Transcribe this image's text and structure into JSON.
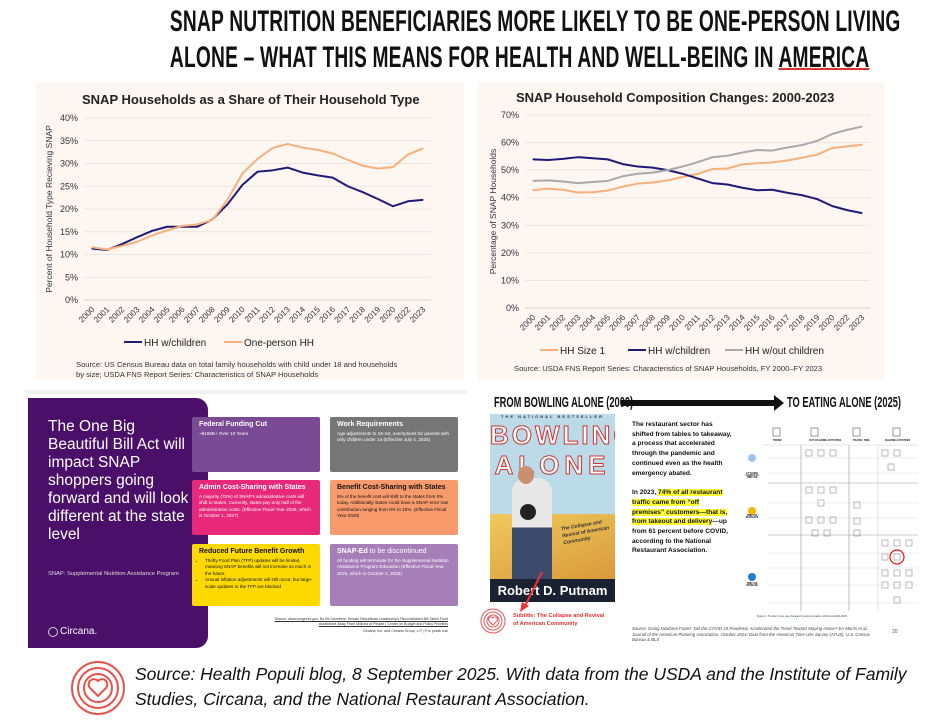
{
  "title": {
    "line1": "SNAP NUTRITION BENEFICIARIES MORE LIKELY TO BE ONE-PERSON LIVING",
    "line2_a": "ALONE – WHAT THIS MEANS FOR HEALTH AND WELL-BEING IN ",
    "line2_b": "AMERICA"
  },
  "chart_data": [
    {
      "type": "line",
      "title": "SNAP Households as a Share of Their Household Type",
      "xlabel": "",
      "ylabel": "Percent of Household Type Recieving SNAP",
      "categories": [
        "2000",
        "2001",
        "2002",
        "2003",
        "2004",
        "2005",
        "2006",
        "2007",
        "2008",
        "2009",
        "2010",
        "2011",
        "2012",
        "2013",
        "2014",
        "2015",
        "2016",
        "2017",
        "2018",
        "2019",
        "2020",
        "2022",
        "2023"
      ],
      "ylim": [
        0,
        40
      ],
      "yticks": [
        "0%",
        "5%",
        "10%",
        "15%",
        "20%",
        "25%",
        "30%",
        "35%",
        "40%"
      ],
      "grid": true,
      "legend": "bottom",
      "series": [
        {
          "name": "HH w/children",
          "color": "#1f1a7a",
          "values": [
            11.3,
            11.0,
            12.3,
            13.8,
            15.2,
            16.1,
            16.1,
            16.1,
            17.7,
            21.0,
            25.3,
            28.2,
            28.5,
            29.1,
            28.0,
            27.4,
            26.9,
            25.0,
            23.7,
            22.2,
            20.6,
            21.7,
            22.0
          ]
        },
        {
          "name": "One-person HH",
          "color": "#f8b07a",
          "values": [
            11.6,
            11.1,
            11.9,
            12.8,
            14.2,
            15.3,
            16.3,
            16.6,
            17.6,
            22.0,
            27.8,
            31.0,
            33.4,
            34.3,
            33.5,
            33.0,
            32.2,
            30.8,
            29.5,
            28.9,
            29.2,
            32.0,
            33.3
          ]
        }
      ],
      "source": "Source: US Census Bureau data on total family households with child under 18 and households by size; USDA FNS Report Series: Characteristics of SNAP Households"
    },
    {
      "type": "line",
      "title": "SNAP Household Composition Changes: 2000-2023",
      "xlabel": "",
      "ylabel": "Percentage of SNAP Households",
      "categories": [
        "2000",
        "2001",
        "2002",
        "2003",
        "2004",
        "2005",
        "2006",
        "2007",
        "2008",
        "2009",
        "2010",
        "2011",
        "2012",
        "2013",
        "2014",
        "2015",
        "2016",
        "2017",
        "2018",
        "2019",
        "2020",
        "2022",
        "2023"
      ],
      "ylim": [
        0,
        70
      ],
      "yticks": [
        "0%",
        "10%",
        "20%",
        "30%",
        "40%",
        "50%",
        "60%",
        "70%"
      ],
      "grid": true,
      "legend": "bottom",
      "series": [
        {
          "name": "HH Size 1",
          "color": "#f8b07a",
          "values": [
            42.7,
            43.3,
            42.9,
            41.9,
            42.0,
            42.6,
            44.0,
            45.1,
            45.5,
            46.3,
            47.5,
            48.6,
            50.4,
            50.6,
            52.1,
            52.5,
            52.8,
            53.5,
            54.5,
            55.6,
            58.0,
            58.6,
            59.2
          ]
        },
        {
          "name": "HH w/children",
          "color": "#1f1a7a",
          "values": [
            53.9,
            53.7,
            54.1,
            54.7,
            54.3,
            53.9,
            52.2,
            51.3,
            50.9,
            50.0,
            48.7,
            47.0,
            45.3,
            44.8,
            43.6,
            42.7,
            42.9,
            41.8,
            40.9,
            39.5,
            37.0,
            35.5,
            34.4
          ]
        },
        {
          "name": "HH w/out children",
          "color": "#a9a9a9",
          "values": [
            46.1,
            46.3,
            45.9,
            45.3,
            45.7,
            46.1,
            47.8,
            48.7,
            49.1,
            50.0,
            51.3,
            52.9,
            54.7,
            55.2,
            56.4,
            57.3,
            57.1,
            58.2,
            59.1,
            60.6,
            63.1,
            64.6,
            65.8
          ]
        }
      ],
      "source": "Source: USDA FNS Report Series: Characteristics of SNAP Households, FY 2000–FY 2023"
    }
  ],
  "slide_left": {
    "headline": "The One Big Beautiful Bill Act will impact SNAP shoppers going forward and will look different at the state level",
    "definition": "SNAP: Supplemental Nutrition Assistance Program",
    "logo": "Circana.",
    "boxes": [
      {
        "title": "Federal Funding Cut",
        "body": "~$186B+ Over 10 Years",
        "color": "#7b4a94"
      },
      {
        "title": "Work Requirements",
        "body": "Age adjustments to 18–64, exemptions for parents with only children under 14 (Effective July 4, 2025)",
        "color": "#767676"
      },
      {
        "title": "Admin Cost-Sharing with States",
        "body": "A majority (75%) of SNAP's administrative costs will shift to states. Currently, states pay only half of the administration costs. (Effective Fiscal Year 2028, which is October 1, 2027)",
        "color": "#e8297a"
      },
      {
        "title": "Benefit Cost-Sharing with States",
        "body": "5% of the benefit cost will shift to the states from 0% today. Additionally states could have a SNAP error rate contribution ranging from 0% to 15%. (Effective Fiscal Year 2028)",
        "color": "#f99a6d"
      },
      {
        "title": "Reduced Future Benefit Growth",
        "bullet1": "Thrifty Food Plan (TFP) updates will be limited, meaning SNAP benefits will not increase as much in the future.",
        "bullet2": "Annual inflation adjustments will still occur, but large-scale updates to the TFP are blocked",
        "color": "#fdd900"
      },
      {
        "title": "SNAP-Ed",
        "title_suffix": " to be discontinued",
        "body": "All funding will terminate for the Supplemental Nutrition Assistance Program Education (Effective Fiscal Year 2026, which is October 1, 2025)",
        "color": "#a67fb8"
      }
    ],
    "source": "Source: www.congress.gov; By the Numbers: Senate Republican Leadership's Reconciliation Bill Takes Food Assistance Away From Millions of People | Center on Budget and Policy Priorities",
    "copyright": "Circana, Inc. and Circana Group, L.P. | For public use"
  },
  "slide_right": {
    "from_label": "FROM BOWLING ALONE (2000)",
    "to_label": "TO EATING ALONE (2025)",
    "book": {
      "tagline": "THE NATIONAL BESTSELLER",
      "title1": "BOWLING",
      "title2": "ALONE",
      "subtitle": "The Collapse and Revival of American Community",
      "author": "Robert D. Putnam"
    },
    "annotation": "Subtitle: The Collapse and Revival of American Community",
    "para1": "The restaurant sector has shifted from tables to takeaway, a process that accelerated through the pandemic and continued even as the health emergency abated.",
    "para2_a": "In 2023, ",
    "para2_hl": "74% of all restaurant traffic came from “off premises” customers—that is, from takeout and delivery",
    "para2_b": "—up from 61 percent before COVID, according to the National Restaurant Association.",
    "figure": {
      "col1": "TREND",
      "col2": "OUT-OF-HOME ACTIVITIES",
      "col3": "TRAVEL TIME",
      "col4": "IN-HOME ACTIVITIES",
      "row1": "LITTLE/NO CHANGE IN TIME USE",
      "row2": "TIME USE DECREASE",
      "row3": "TIME USE INCREASE",
      "caption": "Figure 1. Trends in time use changes by activity location, 2019 and 2021-2023."
    },
    "source": "Source: Going Nowhere Faster: Did the COVID-19 Pandemic Accelerated the Trend Toward Staying Home? EA Morris et al., Journal of the American Planning Association. October 2024. Data from the American Time Use Survey (ATUS), U.S. Census Bureau & BLS",
    "page_number": "20"
  },
  "footer": {
    "text": "Source:  Health Populi blog, 8 September 2025. With data from the USDA and the Institute of Family Studies, Circana, and the National Restaurant Association."
  }
}
